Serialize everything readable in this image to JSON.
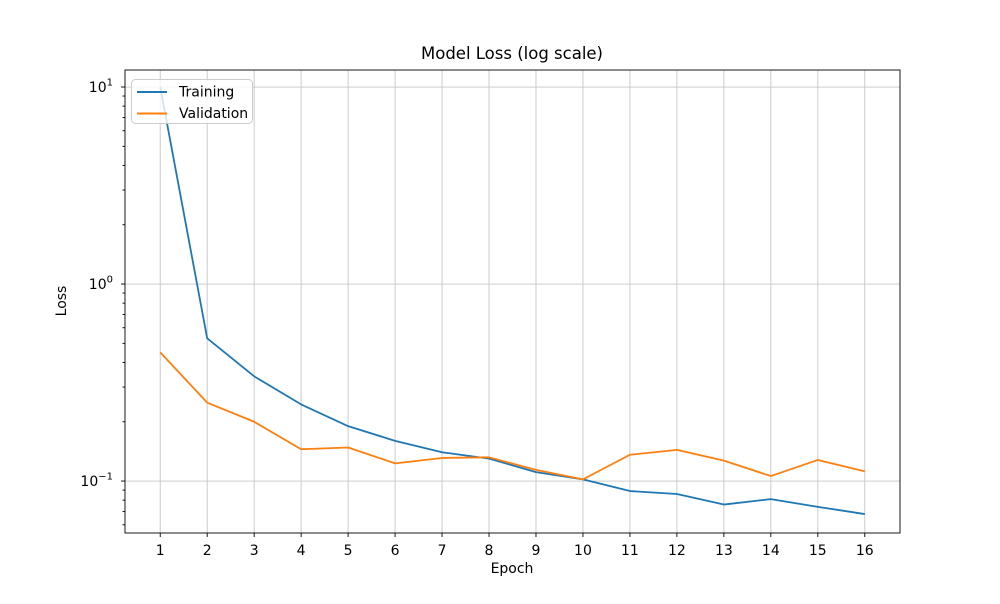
{
  "figure": {
    "background": "#ffffff"
  },
  "chart_data": {
    "type": "line",
    "title": "Model Loss (log scale)",
    "xlabel": "Epoch",
    "ylabel": "Loss",
    "yscale": "log",
    "grid": true,
    "legend_position": "upper left",
    "x": [
      1,
      2,
      3,
      4,
      5,
      6,
      7,
      8,
      9,
      10,
      11,
      12,
      13,
      14,
      15,
      16
    ],
    "xticks": [
      1,
      2,
      3,
      4,
      5,
      6,
      7,
      8,
      9,
      10,
      11,
      12,
      13,
      14,
      15,
      16
    ],
    "series": [
      {
        "name": "Training",
        "color": "#1f77b4",
        "values": [
          10.0,
          0.53,
          0.34,
          0.245,
          0.19,
          0.16,
          0.14,
          0.13,
          0.111,
          0.102,
          0.089,
          0.086,
          0.076,
          0.081,
          0.074,
          0.068
        ]
      },
      {
        "name": "Validation",
        "color": "#ff7f0e",
        "values": [
          0.45,
          0.25,
          0.2,
          0.145,
          0.148,
          0.123,
          0.131,
          0.132,
          0.114,
          0.102,
          0.136,
          0.144,
          0.127,
          0.106,
          0.128,
          0.112
        ]
      }
    ],
    "xlim": [
      0.25,
      16.75
    ],
    "ylim": [
      0.0545,
      12.2
    ],
    "yticks": [
      {
        "value": 10,
        "base": "10",
        "exp": "1"
      },
      {
        "value": 1,
        "base": "10",
        "exp": "0"
      },
      {
        "value": 0.1,
        "base": "10",
        "exp": "−1"
      }
    ]
  }
}
